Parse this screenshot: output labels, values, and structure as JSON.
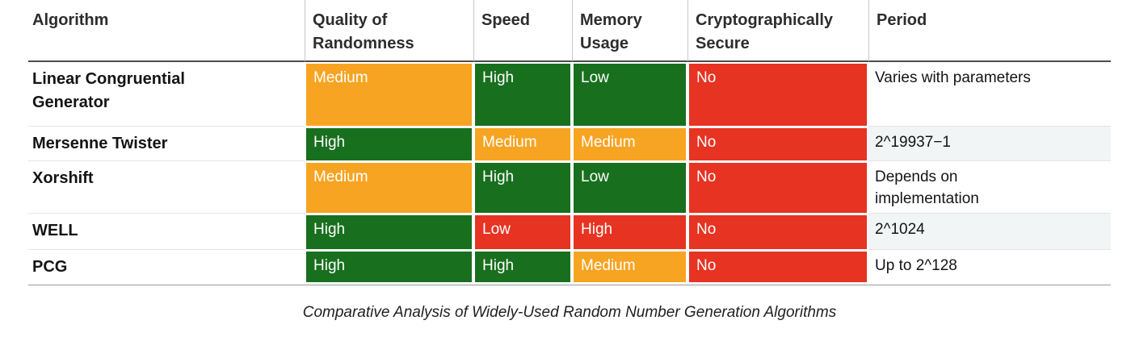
{
  "caption": "Comparative Analysis of Widely-Used Random Number Generation Algorithms",
  "colors": {
    "green": "#186f1e",
    "orange": "#f7a422",
    "red": "#e63322",
    "stripe": "#f2f5f6",
    "cell_text": "#ffffff"
  },
  "table": {
    "columns": [
      {
        "id": "algorithm",
        "label": "Algorithm"
      },
      {
        "id": "quality",
        "label": "Quality of Randomness"
      },
      {
        "id": "speed",
        "label": "Speed"
      },
      {
        "id": "memory",
        "label": "Memory Usage"
      },
      {
        "id": "crypto",
        "label": "Cryptographically Secure"
      },
      {
        "id": "period",
        "label": "Period"
      }
    ],
    "rows": [
      {
        "algorithm": "Linear Congruential Generator",
        "cells": [
          {
            "text": "Medium",
            "color": "orange"
          },
          {
            "text": "High",
            "color": "green"
          },
          {
            "text": "Low",
            "color": "green"
          },
          {
            "text": "No",
            "color": "red"
          }
        ],
        "period": "Varies with parameters",
        "striped": false
      },
      {
        "algorithm": "Mersenne Twister",
        "cells": [
          {
            "text": "High",
            "color": "green"
          },
          {
            "text": "Medium",
            "color": "orange"
          },
          {
            "text": "Medium",
            "color": "orange"
          },
          {
            "text": "No",
            "color": "red"
          }
        ],
        "period": "2^19937−1",
        "striped": true
      },
      {
        "algorithm": "Xorshift",
        "cells": [
          {
            "text": "Medium",
            "color": "orange"
          },
          {
            "text": "High",
            "color": "green"
          },
          {
            "text": "Low",
            "color": "green"
          },
          {
            "text": "No",
            "color": "red"
          }
        ],
        "period": "Depends on implementation",
        "striped": false
      },
      {
        "algorithm": "WELL",
        "cells": [
          {
            "text": "High",
            "color": "green"
          },
          {
            "text": "Low",
            "color": "red"
          },
          {
            "text": "High",
            "color": "red"
          },
          {
            "text": "No",
            "color": "red"
          }
        ],
        "period": "2^1024",
        "striped": true
      },
      {
        "algorithm": "PCG",
        "cells": [
          {
            "text": "High",
            "color": "green"
          },
          {
            "text": "High",
            "color": "green"
          },
          {
            "text": "Medium",
            "color": "orange"
          },
          {
            "text": "No",
            "color": "red"
          }
        ],
        "period": "Up to 2^128",
        "striped": false
      }
    ]
  },
  "chart_data": {
    "type": "table",
    "title": "Comparative Analysis of Widely-Used Random Number Generation Algorithms",
    "columns": [
      "Algorithm",
      "Quality of Randomness",
      "Speed",
      "Memory Usage",
      "Cryptographically Secure",
      "Period"
    ],
    "rows": [
      [
        "Linear Congruential Generator",
        "Medium",
        "High",
        "Low",
        "No",
        "Varies with parameters"
      ],
      [
        "Mersenne Twister",
        "High",
        "Medium",
        "Medium",
        "No",
        "2^19937−1"
      ],
      [
        "Xorshift",
        "Medium",
        "High",
        "Low",
        "No",
        "Depends on implementation"
      ],
      [
        "WELL",
        "High",
        "Low",
        "High",
        "No",
        "2^1024"
      ],
      [
        "PCG",
        "High",
        "High",
        "Medium",
        "No",
        "Up to 2^128"
      ]
    ],
    "cell_color_coding": [
      [
        "none",
        "orange",
        "green",
        "green",
        "red",
        "none"
      ],
      [
        "none",
        "green",
        "orange",
        "orange",
        "red",
        "none"
      ],
      [
        "none",
        "orange",
        "green",
        "green",
        "red",
        "none"
      ],
      [
        "none",
        "green",
        "red",
        "red",
        "red",
        "none"
      ],
      [
        "none",
        "green",
        "green",
        "orange",
        "red",
        "none"
      ]
    ],
    "legend_position": "none",
    "grid": "off"
  }
}
